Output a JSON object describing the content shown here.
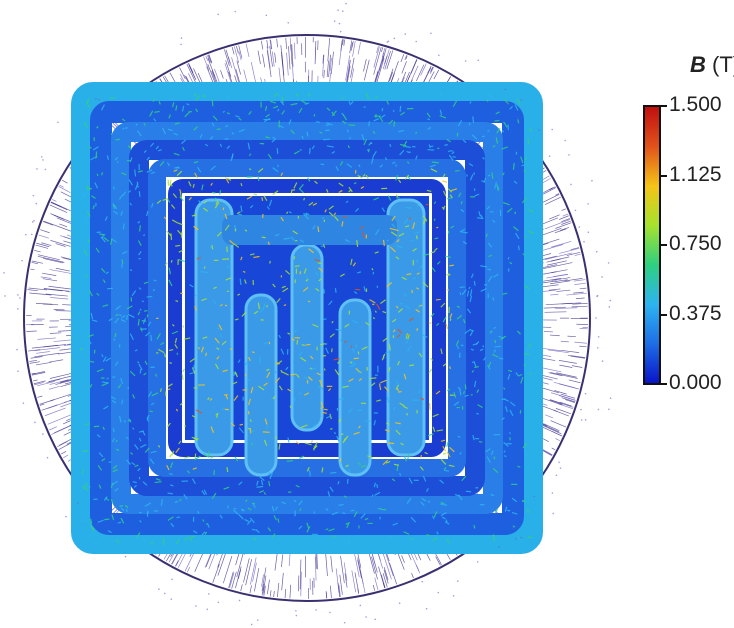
{
  "figure": {
    "subject": "magnetic field vectors",
    "colormap": [
      "#0a14c8",
      "#1e6ee6",
      "#2db4f0",
      "#2fd080",
      "#a6e22e",
      "#f4c418",
      "#e0521b",
      "#c01010"
    ]
  },
  "legend": {
    "symbol": "B",
    "unit": "(T)",
    "ticks": [
      "1.500",
      "1.125",
      "0.750",
      "0.375",
      "0.000"
    ]
  }
}
